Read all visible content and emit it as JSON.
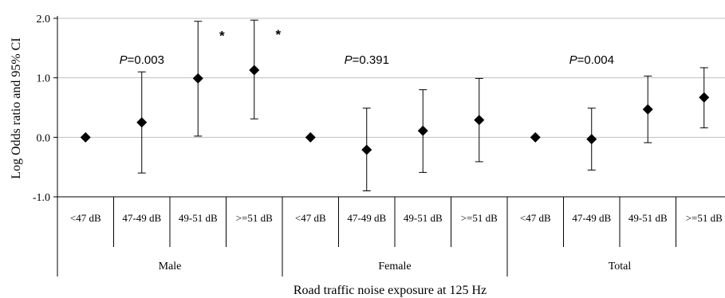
{
  "chart_data": {
    "type": "scatter",
    "ylabel": "Log Odds ratio and 95% CI",
    "xlabel": "Road traffic noise exposure at 125 Hz",
    "ylim": [
      -1.0,
      2.0
    ],
    "yticks": [
      "-1.0",
      "0.0",
      "1.0",
      "2.0"
    ],
    "grid": true,
    "groups": [
      {
        "name": "Male",
        "p_prefix": "P",
        "p_value": "=0.003",
        "categories": [
          "<47 dB",
          "47-49 dB",
          "49-51 dB",
          ">=51 dB"
        ],
        "values": [
          0.0,
          0.25,
          0.99,
          1.13
        ],
        "lower": [
          0.0,
          -0.6,
          0.02,
          0.31
        ],
        "upper": [
          0.0,
          1.1,
          1.95,
          1.97
        ],
        "significant": [
          false,
          false,
          true,
          true
        ]
      },
      {
        "name": "Female",
        "p_prefix": "P",
        "p_value": "=0.391",
        "categories": [
          "<47 dB",
          "47-49 dB",
          "49-51 dB",
          ">=51 dB"
        ],
        "values": [
          0.0,
          -0.21,
          0.11,
          0.29
        ],
        "lower": [
          0.0,
          -0.9,
          -0.59,
          -0.41
        ],
        "upper": [
          0.0,
          0.49,
          0.8,
          0.99
        ],
        "significant": [
          false,
          false,
          false,
          false
        ]
      },
      {
        "name": "Total",
        "p_prefix": "P",
        "p_value": "=0.004",
        "categories": [
          "<47 dB",
          "47-49 dB",
          "49-51 dB",
          ">=51 dB"
        ],
        "values": [
          0.0,
          -0.03,
          0.47,
          0.67
        ],
        "lower": [
          0.0,
          -0.55,
          -0.09,
          0.16
        ],
        "upper": [
          0.0,
          0.49,
          1.03,
          1.17
        ],
        "significant": [
          false,
          false,
          false,
          true
        ]
      }
    ],
    "significance_marker": "*"
  }
}
